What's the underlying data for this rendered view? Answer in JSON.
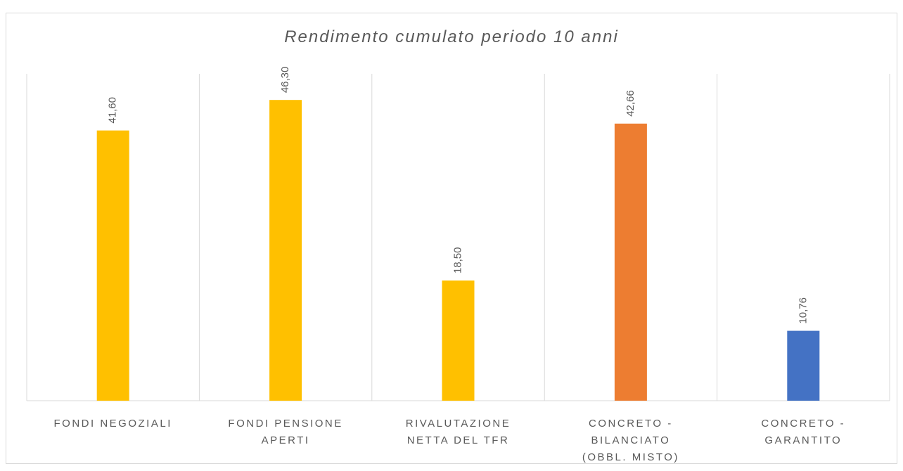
{
  "chart_data": {
    "type": "bar",
    "title": "Rendimento cumulato periodo 10 anni",
    "categories": [
      [
        "FONDI NEGOZIALI"
      ],
      [
        "FONDI PENSIONE",
        "APERTI"
      ],
      [
        "RIVALUTAZIONE",
        "NETTA DEL TFR"
      ],
      [
        "CONCRETO -",
        "BILANCIATO",
        "(OBBL. MISTO)"
      ],
      [
        "CONCRETO -",
        "GARANTITO"
      ]
    ],
    "values": [
      41.6,
      46.3,
      18.5,
      42.66,
      10.76
    ],
    "value_labels": [
      "41,60",
      "46,30",
      "18,50",
      "42,66",
      "10,76"
    ],
    "colors": [
      "#FFC000",
      "#FFC000",
      "#FFC000",
      "#ED7D31",
      "#4472C4"
    ],
    "ylim": [
      0,
      50
    ]
  }
}
